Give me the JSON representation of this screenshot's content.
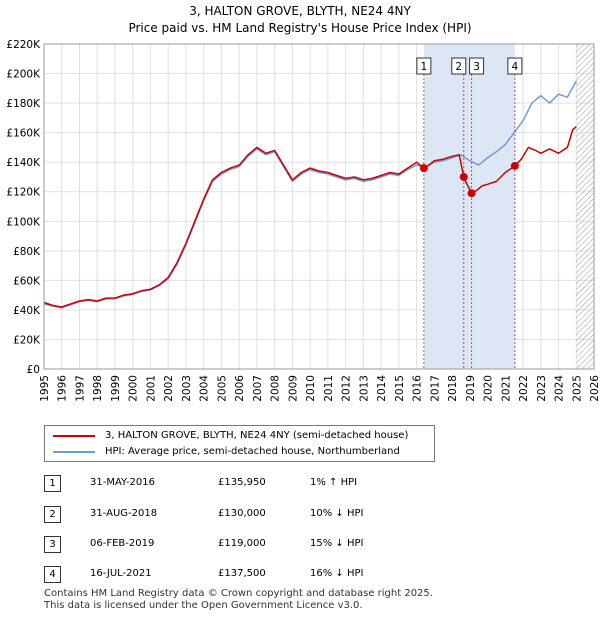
{
  "header": {
    "title_line1": "3, HALTON GROVE, BLYTH, NE24 4NY",
    "title_line2": "Price paid vs. HM Land Registry's House Price Index (HPI)"
  },
  "colors": {
    "property": "#cc0000",
    "hpi": "#6a9fd8",
    "shade": "#dce6f5",
    "grid": "#e0e0e0",
    "marker_line": "#cc0000"
  },
  "chart_data": {
    "type": "line",
    "xlim": [
      1995,
      2026
    ],
    "ylim": [
      0,
      220000
    ],
    "y_ticks": [
      0,
      20000,
      40000,
      60000,
      80000,
      100000,
      120000,
      140000,
      160000,
      180000,
      200000,
      220000
    ],
    "y_tick_labels": [
      "£0",
      "£20K",
      "£40K",
      "£60K",
      "£80K",
      "£100K",
      "£120K",
      "£140K",
      "£160K",
      "£180K",
      "£200K",
      "£220K"
    ],
    "x_ticks": [
      1995,
      1996,
      1997,
      1998,
      1999,
      2000,
      2001,
      2002,
      2003,
      2004,
      2005,
      2006,
      2007,
      2008,
      2009,
      2010,
      2011,
      2012,
      2013,
      2014,
      2015,
      2016,
      2017,
      2018,
      2019,
      2020,
      2021,
      2022,
      2023,
      2024,
      2025,
      2026
    ],
    "x_tick_labels": [
      "1995",
      "1996",
      "1997",
      "1998",
      "1999",
      "2000",
      "2001",
      "2002",
      "2003",
      "2004",
      "2005",
      "2006",
      "2007",
      "2008",
      "2009",
      "2010",
      "2011",
      "2012",
      "2013",
      "2014",
      "2015",
      "2016",
      "2017",
      "2018",
      "2019",
      "2020",
      "2021",
      "2022",
      "2023",
      "2024",
      "2025",
      "2026"
    ],
    "grid": true,
    "shaded_ranges": [
      [
        2016.41,
        2021.54
      ]
    ],
    "hatched_from": 2025.0,
    "series": [
      {
        "name": "3, HALTON GROVE, BLYTH, NE24 4NY (semi-detached house)",
        "x": [
          1995.0,
          1995.5,
          1996.0,
          1996.5,
          1997.0,
          1997.5,
          1998.0,
          1998.5,
          1999.0,
          1999.5,
          2000.0,
          2000.5,
          2001.0,
          2001.5,
          2002.0,
          2002.5,
          2003.0,
          2003.5,
          2004.0,
          2004.5,
          2005.0,
          2005.5,
          2006.0,
          2006.5,
          2007.0,
          2007.5,
          2008.0,
          2008.5,
          2009.0,
          2009.5,
          2010.0,
          2010.5,
          2011.0,
          2011.5,
          2012.0,
          2012.5,
          2013.0,
          2013.5,
          2014.0,
          2014.5,
          2015.0,
          2015.5,
          2016.0,
          2016.41,
          2016.7,
          2017.0,
          2017.5,
          2018.0,
          2018.4,
          2018.66,
          2018.8,
          2019.1,
          2019.4,
          2019.7,
          2020.0,
          2020.5,
          2021.0,
          2021.54,
          2021.9,
          2022.3,
          2022.7,
          2023.0,
          2023.5,
          2024.0,
          2024.5,
          2024.8,
          2025.0
        ],
        "values": [
          45000,
          43000,
          42000,
          44000,
          46000,
          47000,
          46000,
          48000,
          48000,
          50000,
          51000,
          53000,
          54000,
          57000,
          62000,
          72000,
          85000,
          100000,
          115000,
          128000,
          133000,
          136000,
          138000,
          145000,
          150000,
          146000,
          148000,
          138000,
          128000,
          133000,
          136000,
          134000,
          133000,
          131000,
          129000,
          130000,
          128000,
          129000,
          131000,
          133000,
          132000,
          136000,
          140000,
          135950,
          138000,
          141000,
          142000,
          144000,
          145000,
          130000,
          126000,
          119000,
          121000,
          124000,
          125000,
          127000,
          133000,
          137500,
          142000,
          150000,
          148000,
          146000,
          149000,
          146000,
          150000,
          162000,
          164000
        ]
      },
      {
        "name": "HPI: Average price, semi-detached house, Northumberland",
        "x": [
          1995.0,
          1995.5,
          1996.0,
          1996.5,
          1997.0,
          1997.5,
          1998.0,
          1998.5,
          1999.0,
          1999.5,
          2000.0,
          2000.5,
          2001.0,
          2001.5,
          2002.0,
          2002.5,
          2003.0,
          2003.5,
          2004.0,
          2004.5,
          2005.0,
          2005.5,
          2006.0,
          2006.5,
          2007.0,
          2007.5,
          2008.0,
          2008.5,
          2009.0,
          2009.5,
          2010.0,
          2010.5,
          2011.0,
          2011.5,
          2012.0,
          2012.5,
          2013.0,
          2013.5,
          2014.0,
          2014.5,
          2015.0,
          2015.5,
          2016.0,
          2016.5,
          2017.0,
          2017.5,
          2018.0,
          2018.5,
          2019.0,
          2019.5,
          2020.0,
          2020.5,
          2021.0,
          2021.5,
          2022.0,
          2022.5,
          2023.0,
          2023.5,
          2024.0,
          2024.5,
          2025.0
        ],
        "values": [
          44000,
          42500,
          41500,
          43500,
          45500,
          46500,
          45500,
          47500,
          47500,
          49500,
          50500,
          52500,
          53500,
          56500,
          61000,
          71000,
          84000,
          99000,
          114000,
          127000,
          132000,
          135000,
          137000,
          144000,
          149000,
          145000,
          147000,
          137000,
          127000,
          132000,
          135000,
          133000,
          132000,
          130000,
          128000,
          129000,
          127000,
          128000,
          130000,
          132000,
          131000,
          135000,
          138000,
          137000,
          140000,
          141000,
          143000,
          145000,
          141000,
          138000,
          143000,
          147000,
          152000,
          160000,
          168000,
          180000,
          185000,
          180000,
          186000,
          184000,
          195000
        ]
      }
    ],
    "transactions": [
      {
        "label": "1",
        "date": "31-MAY-2016",
        "price_text": "£135,950",
        "hpi_text": "1% ↑ HPI",
        "x": 2016.41,
        "value": 135950
      },
      {
        "label": "2",
        "date": "31-AUG-2018",
        "price_text": "£130,000",
        "hpi_text": "10% ↓ HPI",
        "x": 2018.66,
        "value": 130000
      },
      {
        "label": "3",
        "date": "06-FEB-2019",
        "price_text": "£119,000",
        "hpi_text": "15% ↓ HPI",
        "x": 2019.1,
        "value": 119000
      },
      {
        "label": "4",
        "date": "16-JUL-2021",
        "price_text": "£137,500",
        "hpi_text": "16% ↓ HPI",
        "x": 2021.54,
        "value": 137500
      }
    ]
  },
  "legend": {
    "property_label": "3, HALTON GROVE, BLYTH, NE24 4NY (semi-detached house)",
    "hpi_label": "HPI: Average price, semi-detached house, Northumberland"
  },
  "footer": {
    "line1": "Contains HM Land Registry data © Crown copyright and database right 2025.",
    "line2": "This data is licensed under the Open Government Licence v3.0."
  }
}
